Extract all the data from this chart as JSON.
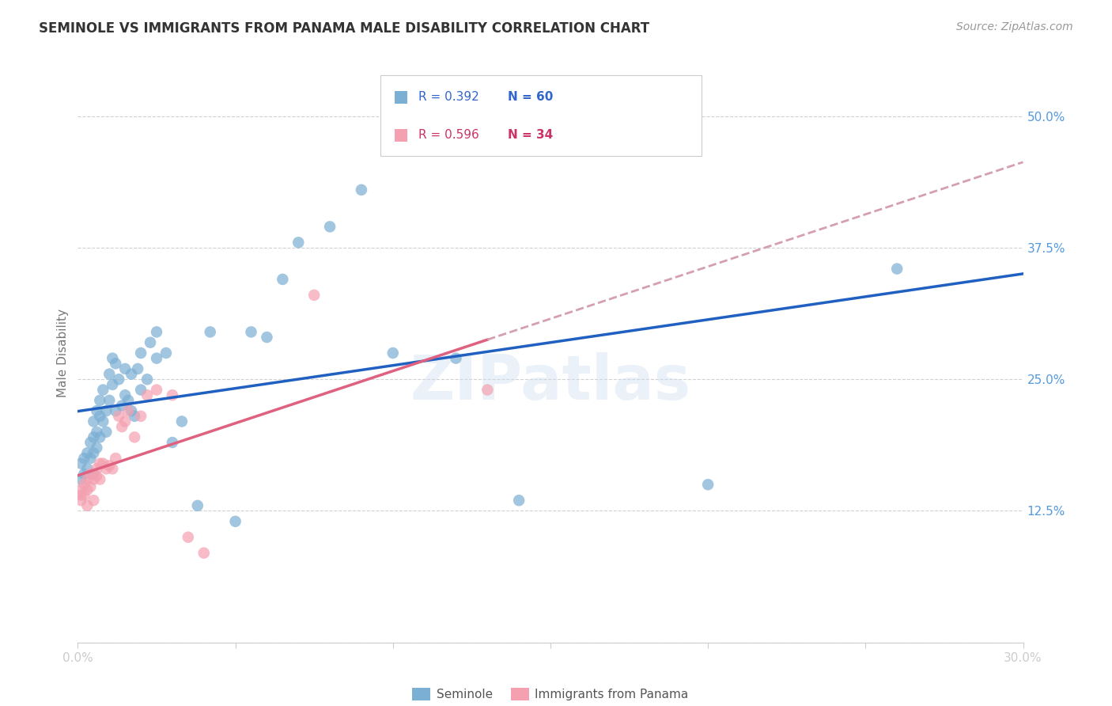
{
  "title": "SEMINOLE VS IMMIGRANTS FROM PANAMA MALE DISABILITY CORRELATION CHART",
  "source": "Source: ZipAtlas.com",
  "ylabel": "Male Disability",
  "xlim": [
    0.0,
    0.3
  ],
  "ylim": [
    0.0,
    0.55
  ],
  "x_ticks": [
    0.0,
    0.05,
    0.1,
    0.15,
    0.2,
    0.25,
    0.3
  ],
  "y_ticks": [
    0.0,
    0.125,
    0.25,
    0.375,
    0.5
  ],
  "y_tick_labels": [
    "",
    "12.5%",
    "25.0%",
    "37.5%",
    "50.0%"
  ],
  "grid_color": "#cccccc",
  "background_color": "#ffffff",
  "seminole_color": "#7bafd4",
  "panama_color": "#f4a0b0",
  "line_blue": "#2060c0",
  "line_pink": "#e06080",
  "line_pink_dashed": "#d4a0b0",
  "legend_r1": "R = 0.392",
  "legend_n1": "N = 60",
  "legend_r2": "R = 0.596",
  "legend_n2": "N = 34",
  "seminole_x": [
    0.001,
    0.001,
    0.002,
    0.002,
    0.003,
    0.003,
    0.004,
    0.004,
    0.005,
    0.005,
    0.005,
    0.005,
    0.006,
    0.006,
    0.006,
    0.007,
    0.007,
    0.007,
    0.008,
    0.008,
    0.009,
    0.009,
    0.01,
    0.01,
    0.011,
    0.011,
    0.012,
    0.012,
    0.013,
    0.014,
    0.015,
    0.015,
    0.016,
    0.017,
    0.017,
    0.018,
    0.019,
    0.02,
    0.02,
    0.022,
    0.023,
    0.025,
    0.025,
    0.028,
    0.03,
    0.033,
    0.038,
    0.042,
    0.05,
    0.055,
    0.06,
    0.065,
    0.07,
    0.08,
    0.09,
    0.1,
    0.12,
    0.14,
    0.2,
    0.26
  ],
  "seminole_y": [
    0.17,
    0.155,
    0.175,
    0.16,
    0.18,
    0.165,
    0.19,
    0.175,
    0.195,
    0.18,
    0.21,
    0.16,
    0.2,
    0.185,
    0.22,
    0.195,
    0.215,
    0.23,
    0.21,
    0.24,
    0.22,
    0.2,
    0.23,
    0.255,
    0.245,
    0.27,
    0.22,
    0.265,
    0.25,
    0.225,
    0.235,
    0.26,
    0.23,
    0.22,
    0.255,
    0.215,
    0.26,
    0.24,
    0.275,
    0.25,
    0.285,
    0.27,
    0.295,
    0.275,
    0.19,
    0.21,
    0.13,
    0.295,
    0.115,
    0.295,
    0.29,
    0.345,
    0.38,
    0.395,
    0.43,
    0.275,
    0.27,
    0.135,
    0.15,
    0.355
  ],
  "panama_x": [
    0.001,
    0.001,
    0.001,
    0.002,
    0.002,
    0.003,
    0.003,
    0.003,
    0.004,
    0.004,
    0.005,
    0.005,
    0.006,
    0.006,
    0.007,
    0.007,
    0.008,
    0.009,
    0.01,
    0.011,
    0.012,
    0.013,
    0.014,
    0.015,
    0.016,
    0.018,
    0.02,
    0.022,
    0.025,
    0.03,
    0.035,
    0.04,
    0.075,
    0.13
  ],
  "panama_y": [
    0.135,
    0.14,
    0.145,
    0.14,
    0.15,
    0.145,
    0.155,
    0.13,
    0.148,
    0.16,
    0.135,
    0.155,
    0.158,
    0.165,
    0.155,
    0.17,
    0.17,
    0.165,
    0.168,
    0.165,
    0.175,
    0.215,
    0.205,
    0.21,
    0.22,
    0.195,
    0.215,
    0.235,
    0.24,
    0.235,
    0.1,
    0.085,
    0.33,
    0.24
  ]
}
